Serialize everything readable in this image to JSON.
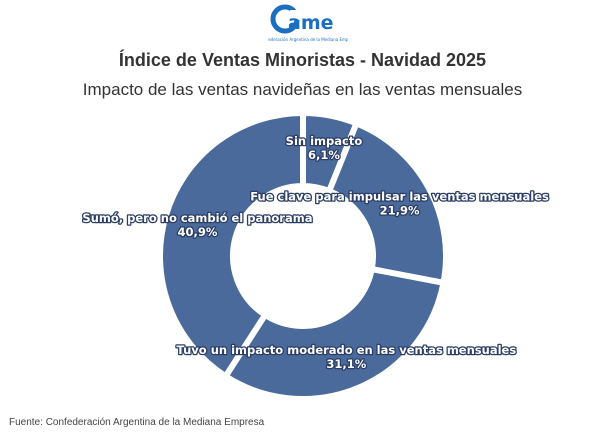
{
  "logo": {
    "text": "came",
    "tagline": "Confederación Argentina de la Mediana Empresa"
  },
  "chart_data": {
    "type": "pie",
    "variant": "donut",
    "title": "Índice de Ventas Minoristas - Navidad 2025",
    "subtitle": "Impacto de las ventas navideñas en las ventas mensuales",
    "categories": [
      "Sin impacto",
      "Fue clave para impulsar las ventas mensuales",
      "Tuvo un impacto moderado en las ventas mensuales",
      "Sumó, pero no cambió el panorama"
    ],
    "values": [
      6.1,
      21.9,
      31.1,
      40.9
    ],
    "value_labels": [
      "6,1%",
      "21,9%",
      "31,1%",
      "40,9%"
    ],
    "color": "#4a6a9b",
    "direction": "clockwise from top"
  },
  "source": "Fuente: Confederación Argentina de la Mediana Empresa"
}
